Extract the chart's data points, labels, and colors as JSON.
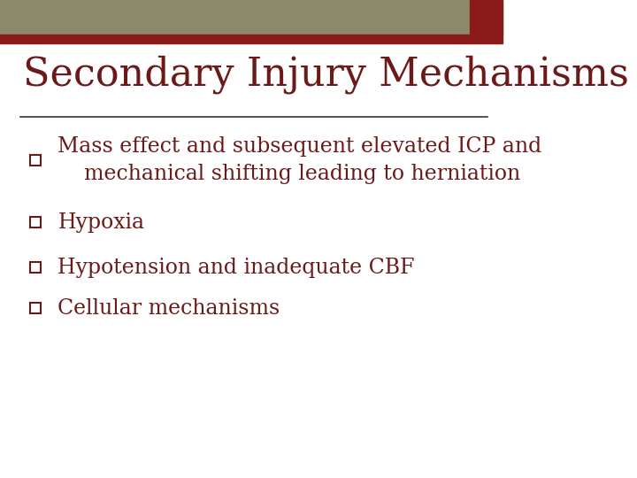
{
  "title": "Secondary Injury Mechanisms",
  "title_color": "#6B1A1A",
  "title_fontsize": 32,
  "background_color": "#FFFFFF",
  "header_bar_color": "#8B8B6B",
  "header_accent_color": "#8B1A1A",
  "header_bar_height": 0.072,
  "divider_color": "#333333",
  "bullet_color": "#6B1A1A",
  "text_color": "#6B1A1A",
  "bullet_fontsize": 17,
  "bullets": [
    "Mass effect and subsequent elevated ICP and\n    mechanical shifting leading to herniation",
    "Hypoxia",
    "Hypotension and inadequate CBF",
    "Cellular mechanisms"
  ]
}
